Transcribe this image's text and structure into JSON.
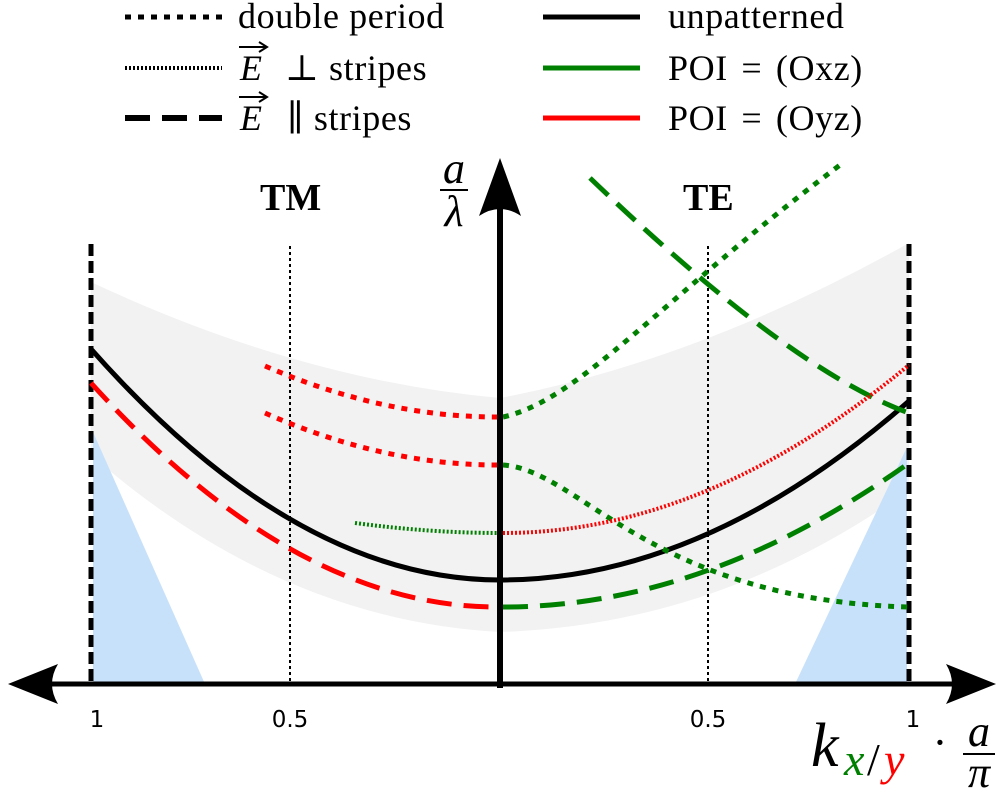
{
  "legend": {
    "double_period": "double period",
    "e_perp": {
      "vector": "E",
      "text": "⊥ stripes"
    },
    "e_parallel": {
      "vector": "E",
      "text": "∥ stripes"
    },
    "unpatterned": "unpatterned",
    "poi_oxz": "POI = (Oxz)",
    "poi_oyz": "POI = (Oyz)"
  },
  "regions": {
    "tm": "TM",
    "te": "TE"
  },
  "y_axis": {
    "label": {
      "numerator": "a",
      "denominator": "λ"
    }
  },
  "x_axis": {
    "ticks": [
      "1",
      "0.5",
      "0.5",
      "1"
    ],
    "label": {
      "symbol": "k",
      "sub_x": "x",
      "sub_sep": "/",
      "sub_y": "y",
      "dot": "·",
      "numerator": "a",
      "denominator": "π"
    }
  },
  "colors": {
    "black": "#000000",
    "oxz": "#008000",
    "oyz": "#ff0000",
    "band": "#f2f2f2",
    "light_cone": "#c8e1fa"
  }
}
